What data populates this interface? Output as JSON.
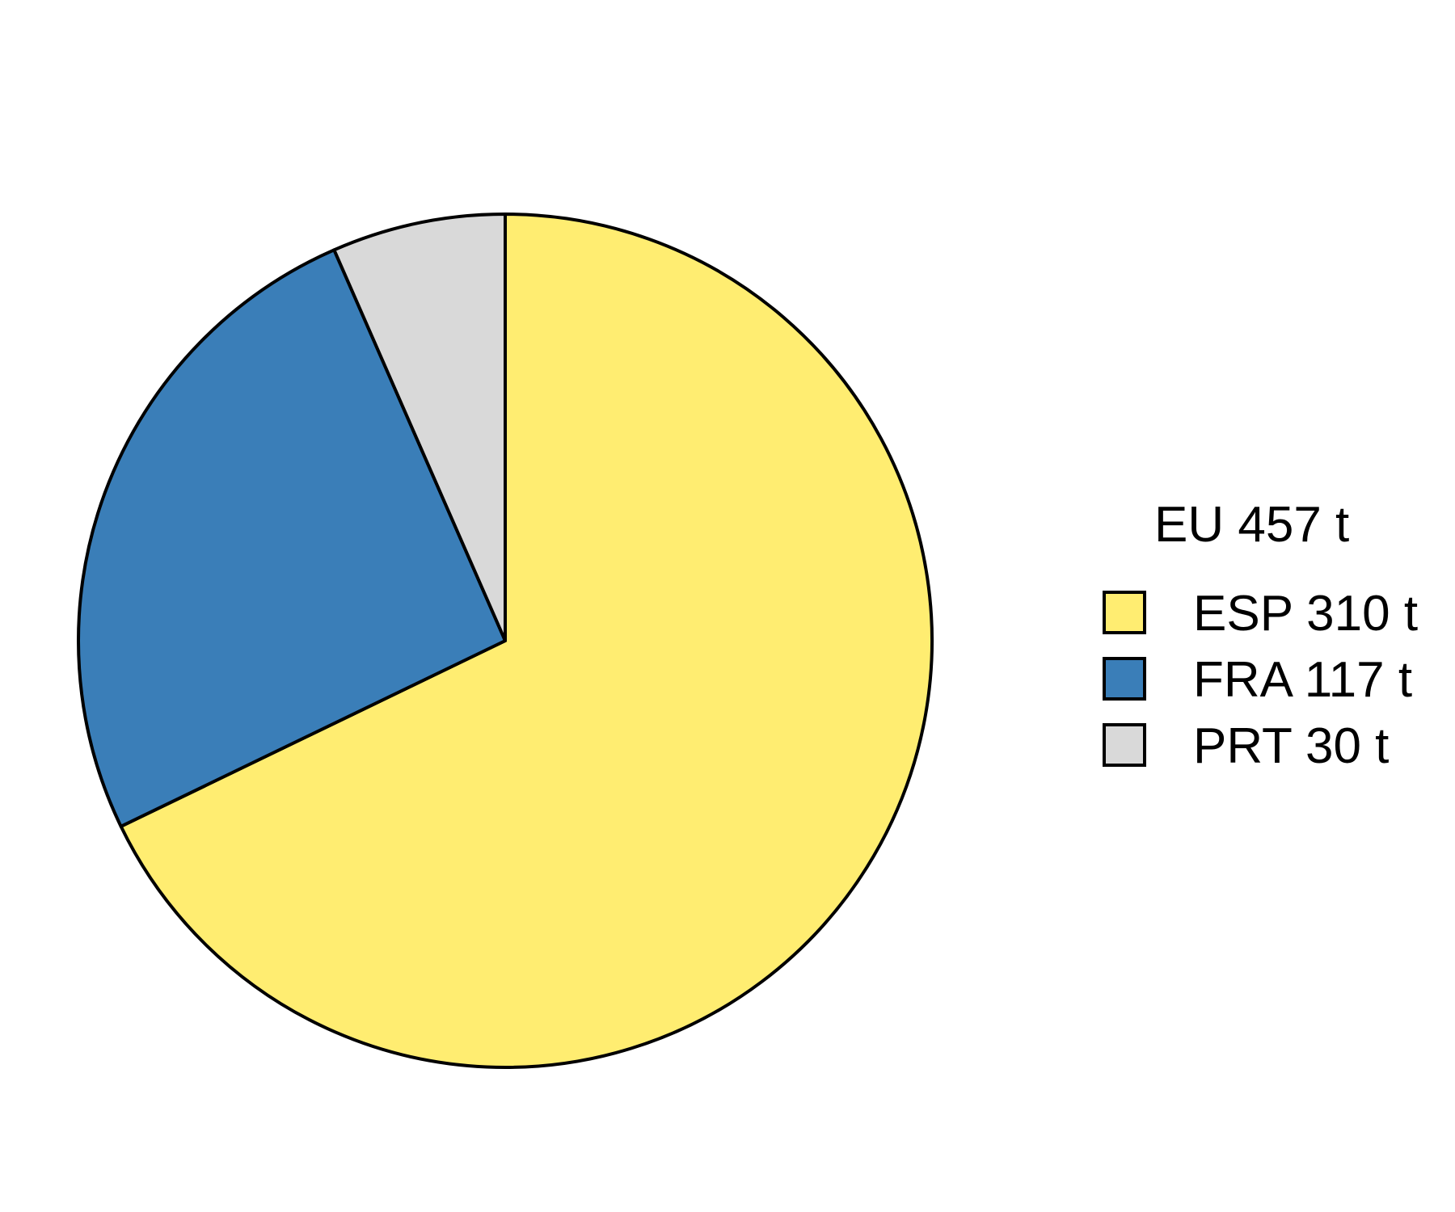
{
  "chart_data": {
    "type": "pie",
    "title": "EU 457 t",
    "labels": [
      "ESP 310 t",
      "FRA 117 t",
      "PRT 30 t"
    ],
    "categories": [
      "ESP",
      "FRA",
      "PRT"
    ],
    "values": [
      310,
      117,
      30
    ],
    "unit": "t",
    "colors": [
      "#FFED71",
      "#3A7EB8",
      "#D9D9D9"
    ],
    "start": "top",
    "direction": "clockwise",
    "legend": "right"
  }
}
